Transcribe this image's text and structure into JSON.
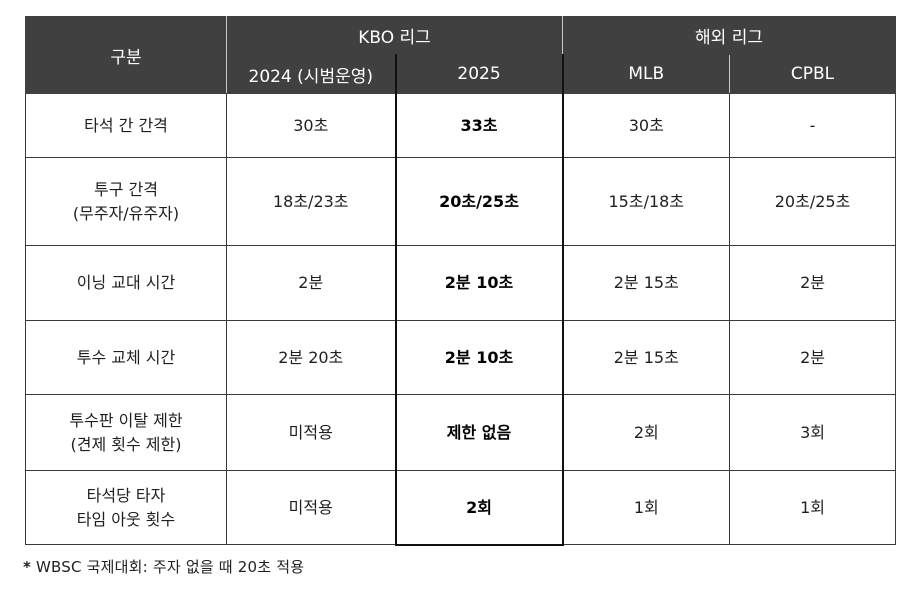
{
  "header": {
    "category": "구분",
    "group_kbo": "KBO 리그",
    "group_overseas": "해외 리그",
    "col_2024": "2024 (시범운영)",
    "col_2025": "2025",
    "col_mlb": "MLB",
    "col_cpbl": "CPBL"
  },
  "rows": [
    {
      "label": "타석 간 간격",
      "v2024": "30초",
      "v2025": "33초",
      "mlb": "30초",
      "cpbl": "-"
    },
    {
      "label": "투구 간격\n(무주자/유주자)",
      "v2024": "18초/23초",
      "v2025": "20초/25초",
      "mlb": "15초/18초",
      "cpbl": "20초/25초"
    },
    {
      "label": "이닝 교대 시간",
      "v2024": "2분",
      "v2025": "2분 10초",
      "mlb": "2분 15초",
      "cpbl": "2분"
    },
    {
      "label": "투수 교체 시간",
      "v2024": "2분 20초",
      "v2025": "2분 10초",
      "mlb": "2분 15초",
      "cpbl": "2분"
    },
    {
      "label": "투수판 이탈 제한\n(견제 횟수 제한)",
      "v2024": "미적용",
      "v2025": "제한 없음",
      "mlb": "2회",
      "cpbl": "3회"
    },
    {
      "label": "타석당 타자\n타임 아웃 횟수",
      "v2024": "미적용",
      "v2025": "2회",
      "mlb": "1회",
      "cpbl": "1회"
    }
  ],
  "footnote": {
    "star": "*",
    "text": "WBSC 국제대회: 주자 없을 때 20초 적용"
  }
}
